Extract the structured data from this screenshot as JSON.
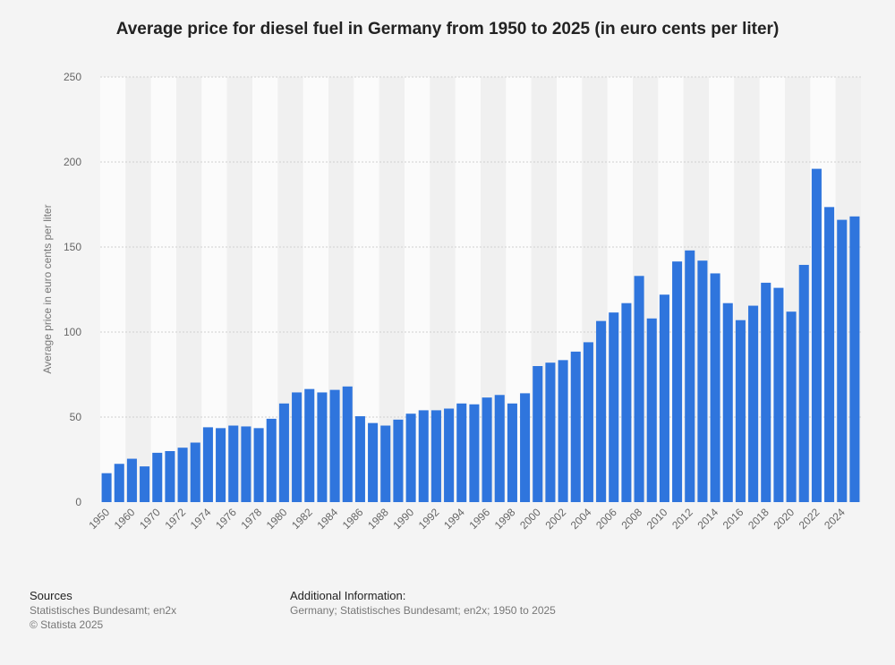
{
  "chart_data": {
    "type": "bar",
    "title": "Average price for diesel fuel in Germany from 1950 to 2025 (in euro cents per liter)",
    "xlabel": "",
    "ylabel": "Average price in euro cents per liter",
    "ylim": [
      0,
      250
    ],
    "yticks": [
      0,
      50,
      100,
      150,
      200,
      250
    ],
    "grid": true,
    "series_color": "#2f75dd",
    "categories": [
      "1950",
      "1955",
      "1960",
      "1965",
      "1970",
      "1971",
      "1972",
      "1973",
      "1974",
      "1975",
      "1976",
      "1977",
      "1978",
      "1979",
      "1980",
      "1981",
      "1982",
      "1983",
      "1984",
      "1985",
      "1986",
      "1987",
      "1988",
      "1989",
      "1990",
      "1991",
      "1992",
      "1993",
      "1994",
      "1995",
      "1996",
      "1997",
      "1998",
      "1999",
      "2000",
      "2001",
      "2002",
      "2003",
      "2004",
      "2005",
      "2006",
      "2007",
      "2008",
      "2009",
      "2010",
      "2011",
      "2012",
      "2013",
      "2014",
      "2015",
      "2016",
      "2017",
      "2018",
      "2019",
      "2020",
      "2021",
      "2022",
      "2023",
      "2024",
      "2025"
    ],
    "tick_labels": [
      "1950",
      "1960",
      "1970",
      "1972",
      "1974",
      "1976",
      "1978",
      "1980",
      "1982",
      "1984",
      "1986",
      "1988",
      "1990",
      "1992",
      "1994",
      "1996",
      "1998",
      "2000",
      "2002",
      "2004",
      "2006",
      "2008",
      "2010",
      "2012",
      "2014",
      "2016",
      "2018",
      "2020",
      "2022",
      "2024"
    ],
    "values": [
      17,
      22.5,
      25.5,
      21,
      29,
      30,
      32,
      35,
      44,
      43.5,
      45,
      44.5,
      43.5,
      49,
      58,
      64.5,
      66.5,
      64.5,
      66,
      68,
      50.5,
      46.5,
      45,
      48.5,
      52,
      54,
      54,
      55,
      58,
      57.5,
      61.5,
      63,
      58,
      64,
      80,
      82,
      83.5,
      88.5,
      94,
      106.5,
      111.5,
      117,
      133,
      108,
      122,
      141.5,
      148,
      142,
      134.5,
      117,
      107,
      115.5,
      129,
      126,
      112,
      139.5,
      196,
      173.5,
      166,
      168
    ]
  },
  "footer": {
    "sources_heading": "Sources",
    "sources_line1": "Statistisches Bundesamt; en2x",
    "sources_line2": "© Statista 2025",
    "additional_heading": "Additional Information:",
    "additional_text": "Germany; Statistisches Bundesamt; en2x; 1950 to 2025"
  }
}
